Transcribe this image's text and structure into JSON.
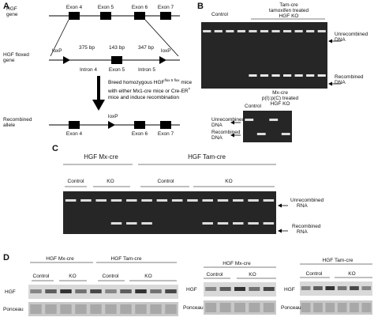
{
  "panel_a": {
    "label": "A",
    "gene_label": [
      "HGF",
      "gene"
    ],
    "gene_exons": [
      "Exon 4",
      "Exon 5",
      "Exon 6",
      "Exon 7"
    ],
    "floxed_label": [
      "HGF floxed",
      "gene"
    ],
    "floxed_loxp": [
      "loxP",
      "loxP"
    ],
    "floxed_sizes": [
      "375 bp",
      "143 bp",
      "347 bp"
    ],
    "floxed_features": [
      "Intron 4",
      "Exon 5",
      "Intron 5"
    ],
    "note": {
      "part1": "Breed homozygous HGF",
      "sup1": "flox 5 flox",
      "part2": "mice with either Mx1-cre mice or Cre-ER",
      "sup2": "T",
      "part3": "mice and induce recombination"
    },
    "recombined_label": [
      "Recombined",
      "allele"
    ],
    "recombined_loxp": "loxP",
    "recombined_exons": [
      "Exon 4",
      "Exon 6",
      "Exon 7"
    ]
  },
  "panel_b": {
    "label": "B",
    "gel1": {
      "control": "Control",
      "ko_header": [
        "Tam-cre",
        "tamoxifen treated",
        "HGF KO"
      ],
      "unrecombined": [
        "Unrecombined",
        "DNA"
      ],
      "recombined": [
        "Recombined",
        "DNA"
      ]
    },
    "gel2": {
      "ko_header": [
        "Mx-cre",
        "p(I):p(C) treated",
        "HGF KO"
      ],
      "control": "Control",
      "unrecombined": [
        "Unrecombined",
        "DNA"
      ],
      "recombined": [
        "Recombined",
        "DNA"
      ]
    }
  },
  "panel_c": {
    "label": "C",
    "groups": [
      {
        "name": "HGF Mx-cre",
        "control": "Control",
        "ko": "KO"
      },
      {
        "name": "HGF Tam-cre",
        "control": "Control",
        "ko": "KO"
      }
    ],
    "unrecombined": [
      "Unrecombined",
      "RNA"
    ],
    "recombined": [
      "Recombined",
      "RNA"
    ]
  },
  "panel_d": {
    "label": "D",
    "left": {
      "groups": [
        {
          "name": "HGF Mx-cre",
          "control": "Control",
          "ko": "KO"
        },
        {
          "name": "HGF Tam-cre",
          "control": "Control",
          "ko": "KO"
        }
      ],
      "rows": [
        "HGF",
        "Ponceau"
      ]
    },
    "middle": {
      "group": {
        "name": "HGF Mx-cre",
        "control": "Control",
        "ko": "KO"
      },
      "rows": [
        "HGF",
        "Ponceau"
      ]
    },
    "right": {
      "group": {
        "name": "HGF Tam-cre",
        "control": "Control",
        "ko": "KO"
      },
      "rows": [
        "HGF",
        "Ponceau"
      ]
    }
  }
}
